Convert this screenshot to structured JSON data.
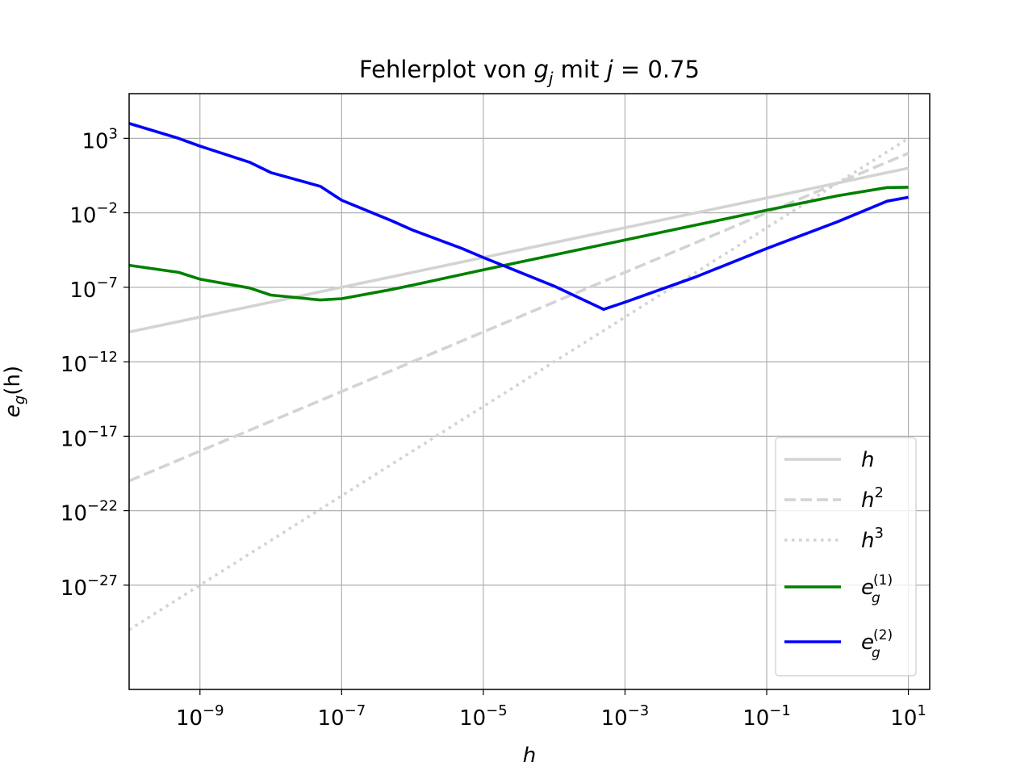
{
  "chart_data": {
    "type": "line",
    "title_prefix": "Fehlerplot von ",
    "title_var": "g",
    "title_sub": "j",
    "title_mid": " mit ",
    "title_j": "j",
    "title_eq": " = 0.75",
    "xlabel": "h",
    "ylabel_e": "e",
    "ylabel_sub": "g",
    "ylabel_arg": "(h)",
    "x_scale": "log",
    "y_scale": "log",
    "xlim": [
      1e-10,
      20
    ],
    "ylim": [
      1e-34,
      1000000.0
    ],
    "grid": true,
    "legend_position": "lower right",
    "x_ticks": [
      {
        "value": 1e-09,
        "base": "10",
        "exp": "−9"
      },
      {
        "value": 1e-07,
        "base": "10",
        "exp": "−7"
      },
      {
        "value": 1e-05,
        "base": "10",
        "exp": "−5"
      },
      {
        "value": 0.001,
        "base": "10",
        "exp": "−3"
      },
      {
        "value": 0.1,
        "base": "10",
        "exp": "−1"
      },
      {
        "value": 10,
        "base": "10",
        "exp": "1"
      }
    ],
    "y_ticks": [
      {
        "value": 1000.0,
        "base": "10",
        "exp": "3"
      },
      {
        "value": 0.01,
        "base": "10",
        "exp": "−2"
      },
      {
        "value": 1e-07,
        "base": "10",
        "exp": "−7"
      },
      {
        "value": 1e-12,
        "base": "10",
        "exp": "−12"
      },
      {
        "value": 1e-17,
        "base": "10",
        "exp": "−17"
      },
      {
        "value": 1e-22,
        "base": "10",
        "exp": "−22"
      },
      {
        "value": 1e-27,
        "base": "10",
        "exp": "−27"
      }
    ],
    "series": [
      {
        "name": "h",
        "legend_base": "h",
        "legend_sup": "",
        "legend_sub": "",
        "color": "#d3d3d3",
        "dash": "solid",
        "x": [
          1e-10,
          10
        ],
        "y": [
          1e-10,
          10
        ]
      },
      {
        "name": "h²",
        "legend_base": "h",
        "legend_sup": "2",
        "legend_sub": "",
        "color": "#d3d3d3",
        "dash": "dashed",
        "x": [
          1e-10,
          10
        ],
        "y": [
          1e-20,
          100
        ]
      },
      {
        "name": "h³",
        "legend_base": "h",
        "legend_sup": "3",
        "legend_sub": "",
        "color": "#d3d3d3",
        "dash": "dotted",
        "x": [
          1e-10,
          10
        ],
        "y": [
          1e-30,
          1000
        ]
      },
      {
        "name": "e_g^(1)",
        "legend_base": "e",
        "legend_sup": "(1)",
        "legend_sub": "g",
        "color": "#008000",
        "dash": "solid",
        "x": [
          1e-10,
          5e-10,
          1e-09,
          5e-09,
          1e-08,
          5e-08,
          1e-07,
          5e-07,
          1e-06,
          1e-05,
          0.0001,
          0.001,
          0.01,
          0.1,
          1,
          5,
          10
        ],
        "y": [
          3e-06,
          1e-06,
          3.5e-07,
          9e-08,
          3e-08,
          1.4e-08,
          1.7e-08,
          7e-08,
          1.4e-07,
          1.5e-06,
          1.5e-05,
          0.00015,
          0.0015,
          0.015,
          0.14,
          0.5,
          0.52
        ]
      },
      {
        "name": "e_g^(2)",
        "legend_base": "e",
        "legend_sup": "(2)",
        "legend_sub": "g",
        "color": "#0000ff",
        "dash": "solid",
        "x": [
          1e-10,
          5e-10,
          1e-09,
          5e-09,
          1e-08,
          5e-08,
          1e-07,
          5e-07,
          1e-06,
          5e-06,
          1e-05,
          0.0001,
          0.0005,
          0.001,
          0.01,
          0.1,
          1,
          5,
          10
        ],
        "y": [
          10000,
          1000,
          300,
          25,
          5,
          0.6,
          0.07,
          0.003,
          0.0007,
          4e-05,
          1e-05,
          1.2e-07,
          3.3e-09,
          1e-08,
          5e-07,
          4e-05,
          0.0025,
          0.06,
          0.11
        ]
      }
    ]
  }
}
